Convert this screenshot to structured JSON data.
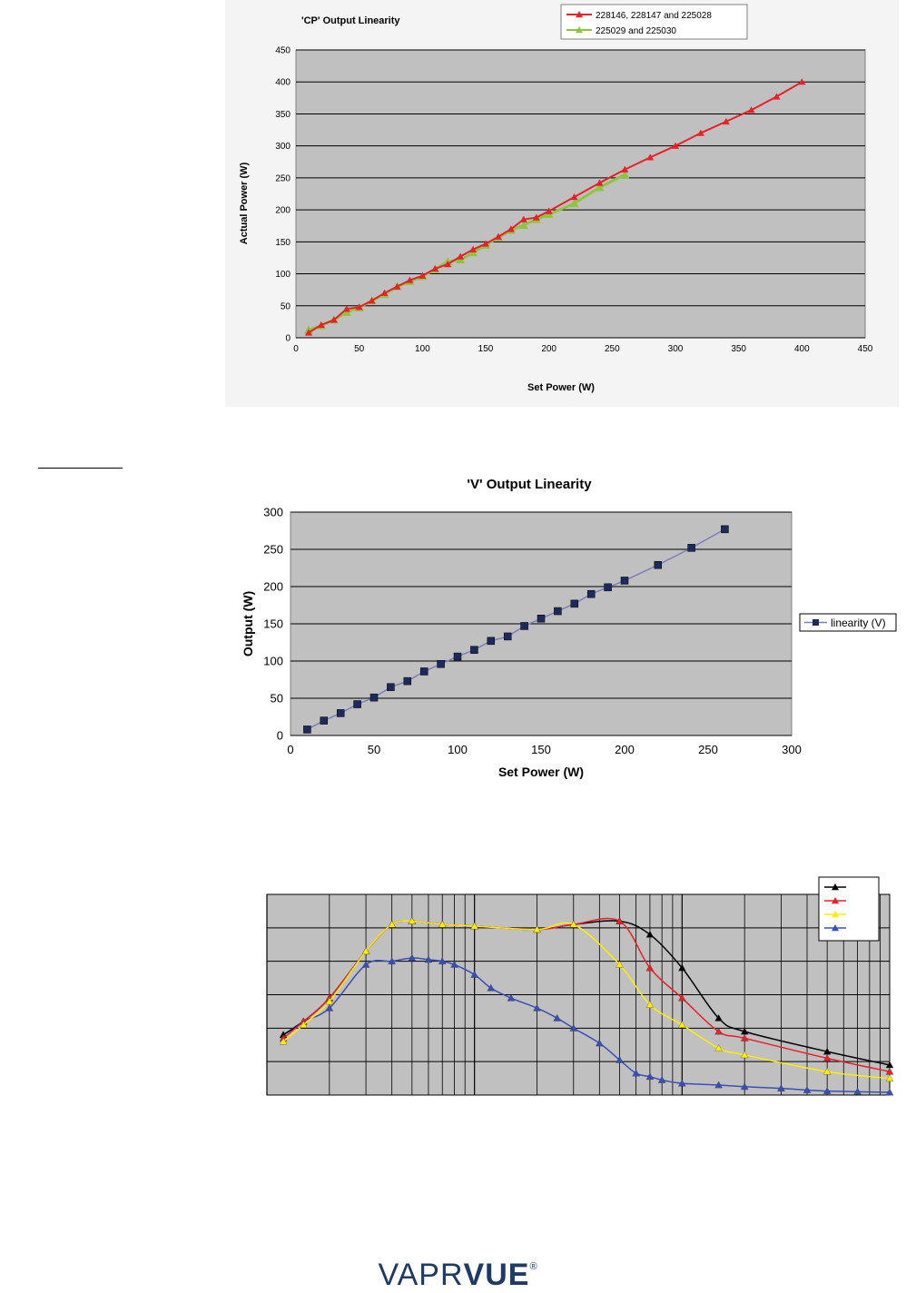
{
  "chart_data": [
    {
      "type": "line",
      "title": "'CP' Output Linearity",
      "xlabel": "Set Power (W)",
      "ylabel": "Actual Power (W)",
      "xlim": [
        0,
        450
      ],
      "ylim": [
        0,
        450
      ],
      "xticks": [
        0,
        50,
        100,
        150,
        200,
        250,
        300,
        350,
        400,
        450
      ],
      "yticks": [
        0,
        50,
        100,
        150,
        200,
        250,
        300,
        350,
        400,
        450
      ],
      "grid": true,
      "legend": "top-right",
      "series": [
        {
          "name": "228146, 228147 and 225028",
          "color": "#e8202a",
          "marker": "triangle",
          "x": [
            10,
            20,
            30,
            40,
            50,
            60,
            70,
            80,
            90,
            100,
            110,
            120,
            130,
            140,
            150,
            160,
            170,
            180,
            190,
            200,
            220,
            240,
            260,
            280,
            300,
            320,
            340,
            360,
            380,
            400
          ],
          "y": [
            8,
            20,
            28,
            45,
            48,
            58,
            70,
            80,
            90,
            97,
            108,
            115,
            127,
            138,
            147,
            158,
            170,
            185,
            188,
            198,
            220,
            242,
            263,
            282,
            300,
            320,
            338,
            356,
            377,
            400
          ]
        },
        {
          "name": "225029 and 225030",
          "color": "#8cc63f",
          "marker": "triangle",
          "x": [
            10,
            20,
            30,
            40,
            50,
            60,
            70,
            80,
            90,
            100,
            110,
            120,
            130,
            140,
            150,
            160,
            170,
            180,
            190,
            200,
            220,
            240,
            260
          ],
          "y": [
            12,
            19,
            28,
            40,
            47,
            58,
            68,
            80,
            88,
            96,
            107,
            119,
            122,
            133,
            145,
            157,
            168,
            176,
            185,
            193,
            210,
            235,
            255
          ]
        }
      ]
    },
    {
      "type": "line",
      "title": "'V' Output Linearity",
      "xlabel": "Set Power (W)",
      "ylabel": "Output (W)",
      "xlim": [
        0,
        300
      ],
      "ylim": [
        0,
        300
      ],
      "xticks": [
        0,
        50,
        100,
        150,
        200,
        250,
        300
      ],
      "yticks": [
        0,
        50,
        100,
        150,
        200,
        250,
        300
      ],
      "grid": true,
      "legend": "right",
      "series": [
        {
          "name": "linearity (V)",
          "color": "#7e7fb8",
          "markerColor": "#1f2a5c",
          "marker": "square",
          "x": [
            10,
            20,
            30,
            40,
            50,
            60,
            70,
            80,
            90,
            100,
            110,
            120,
            130,
            140,
            150,
            160,
            170,
            180,
            190,
            200,
            220,
            240,
            260
          ],
          "y": [
            8,
            20,
            30,
            42,
            51,
            65,
            73,
            86,
            96,
            106,
            115,
            127,
            133,
            147,
            157,
            167,
            177,
            190,
            199,
            208,
            229,
            252,
            277
          ]
        }
      ]
    },
    {
      "type": "line",
      "title": "",
      "xlabel": "",
      "ylabel": "",
      "xscale": "log",
      "xlim": [
        10,
        10000
      ],
      "ylim": [
        0,
        6
      ],
      "grid": true,
      "legend": "top-right",
      "series": [
        {
          "color": "#000000",
          "marker": "triangle",
          "x": [
            12,
            15,
            20,
            30,
            40,
            50,
            70,
            100,
            200,
            300,
            500,
            700,
            1000,
            1500,
            2000,
            5000,
            10000
          ],
          "y": [
            1.8,
            2.2,
            2.9,
            4.3,
            5.1,
            5.2,
            5.1,
            5.05,
            4.95,
            5.1,
            5.2,
            4.8,
            3.8,
            2.3,
            1.9,
            1.3,
            0.9
          ]
        },
        {
          "color": "#e8202a",
          "marker": "triangle",
          "x": [
            12,
            15,
            20,
            30,
            40,
            50,
            70,
            100,
            200,
            300,
            500,
            700,
            1000,
            1500,
            2000,
            5000,
            10000
          ],
          "y": [
            1.7,
            2.2,
            2.9,
            4.3,
            5.1,
            5.2,
            5.1,
            5.05,
            4.95,
            5.1,
            5.2,
            3.8,
            2.9,
            1.9,
            1.7,
            1.1,
            0.7
          ]
        },
        {
          "color": "#ffee00",
          "marker": "triangle",
          "x": [
            12,
            15,
            20,
            30,
            40,
            50,
            70,
            100,
            200,
            300,
            500,
            700,
            1000,
            1500,
            2000,
            5000,
            10000
          ],
          "y": [
            1.6,
            2.1,
            2.8,
            4.3,
            5.1,
            5.2,
            5.1,
            5.05,
            4.95,
            5.1,
            3.9,
            2.7,
            2.1,
            1.4,
            1.2,
            0.7,
            0.5
          ]
        },
        {
          "color": "#3a4fb5",
          "marker": "triangle",
          "x": [
            12,
            15,
            20,
            30,
            40,
            50,
            60,
            70,
            80,
            100,
            120,
            150,
            200,
            250,
            300,
            400,
            500,
            600,
            700,
            800,
            1000,
            1500,
            2000,
            3000,
            4000,
            5000,
            7000,
            10000
          ],
          "y": [
            1.8,
            2.2,
            2.6,
            3.9,
            4.0,
            4.1,
            4.05,
            4.0,
            3.9,
            3.6,
            3.2,
            2.9,
            2.6,
            2.3,
            2.0,
            1.55,
            1.05,
            0.65,
            0.55,
            0.45,
            0.35,
            0.3,
            0.25,
            0.2,
            0.15,
            0.12,
            0.1,
            0.08
          ]
        }
      ]
    }
  ],
  "footer": {
    "logo_light": "VAPR",
    "logo_bold": "VUE",
    "logo_mark": "®"
  }
}
